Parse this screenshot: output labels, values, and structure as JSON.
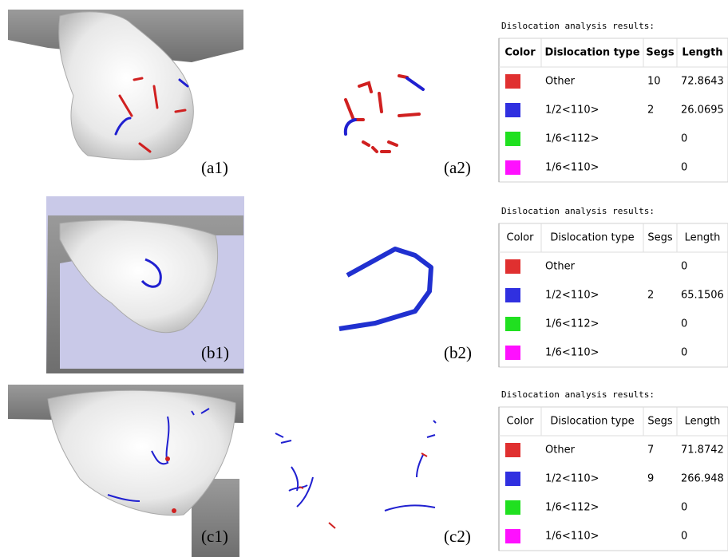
{
  "panels": [
    {
      "render_label": "(a1)",
      "lines_label": "(a2)",
      "table": {
        "title": "Dislocation analysis results:",
        "headers": [
          "Color",
          "Dislocation type",
          "Segs",
          "Length"
        ],
        "rows": [
          {
            "color": "#e03030",
            "type": "Other",
            "segs": "10",
            "length": "72.8643"
          },
          {
            "color": "#3030e0",
            "type": "1/2<110>",
            "segs": "2",
            "length": "26.0695"
          },
          {
            "color": "#20e020",
            "type": "1/6<112>",
            "length": "0"
          },
          {
            "color": "#ff10ff",
            "type": "1/6<110>",
            "length": "0"
          }
        ]
      }
    },
    {
      "render_label": "(b1)",
      "lines_label": "(b2)",
      "table": {
        "title": "Dislocation analysis results:",
        "headers": [
          "Color",
          "Dislocation type",
          "Segs",
          "Length"
        ],
        "rows": [
          {
            "color": "#e03030",
            "type": "Other",
            "length": "0"
          },
          {
            "color": "#3030e0",
            "type": "1/2<110>",
            "segs": "2",
            "length": "65.1506"
          },
          {
            "color": "#20e020",
            "type": "1/6<112>",
            "length": "0"
          },
          {
            "color": "#ff10ff",
            "type": "1/6<110>",
            "length": "0"
          }
        ]
      }
    },
    {
      "render_label": "(c1)",
      "lines_label": "(c2)",
      "table": {
        "title": "Dislocation analysis results:",
        "headers": [
          "Color",
          "Dislocation type",
          "Segs",
          "Length"
        ],
        "rows": [
          {
            "color": "#e03030",
            "type": "Other",
            "segs": "7",
            "length": "71.8742"
          },
          {
            "color": "#3030e0",
            "type": "1/2<110>",
            "segs": "9",
            "length": "266.948"
          },
          {
            "color": "#20e020",
            "type": "1/6<112>",
            "length": "0"
          },
          {
            "color": "#ff10ff",
            "type": "1/6<110>",
            "length": "0"
          }
        ]
      }
    }
  ]
}
